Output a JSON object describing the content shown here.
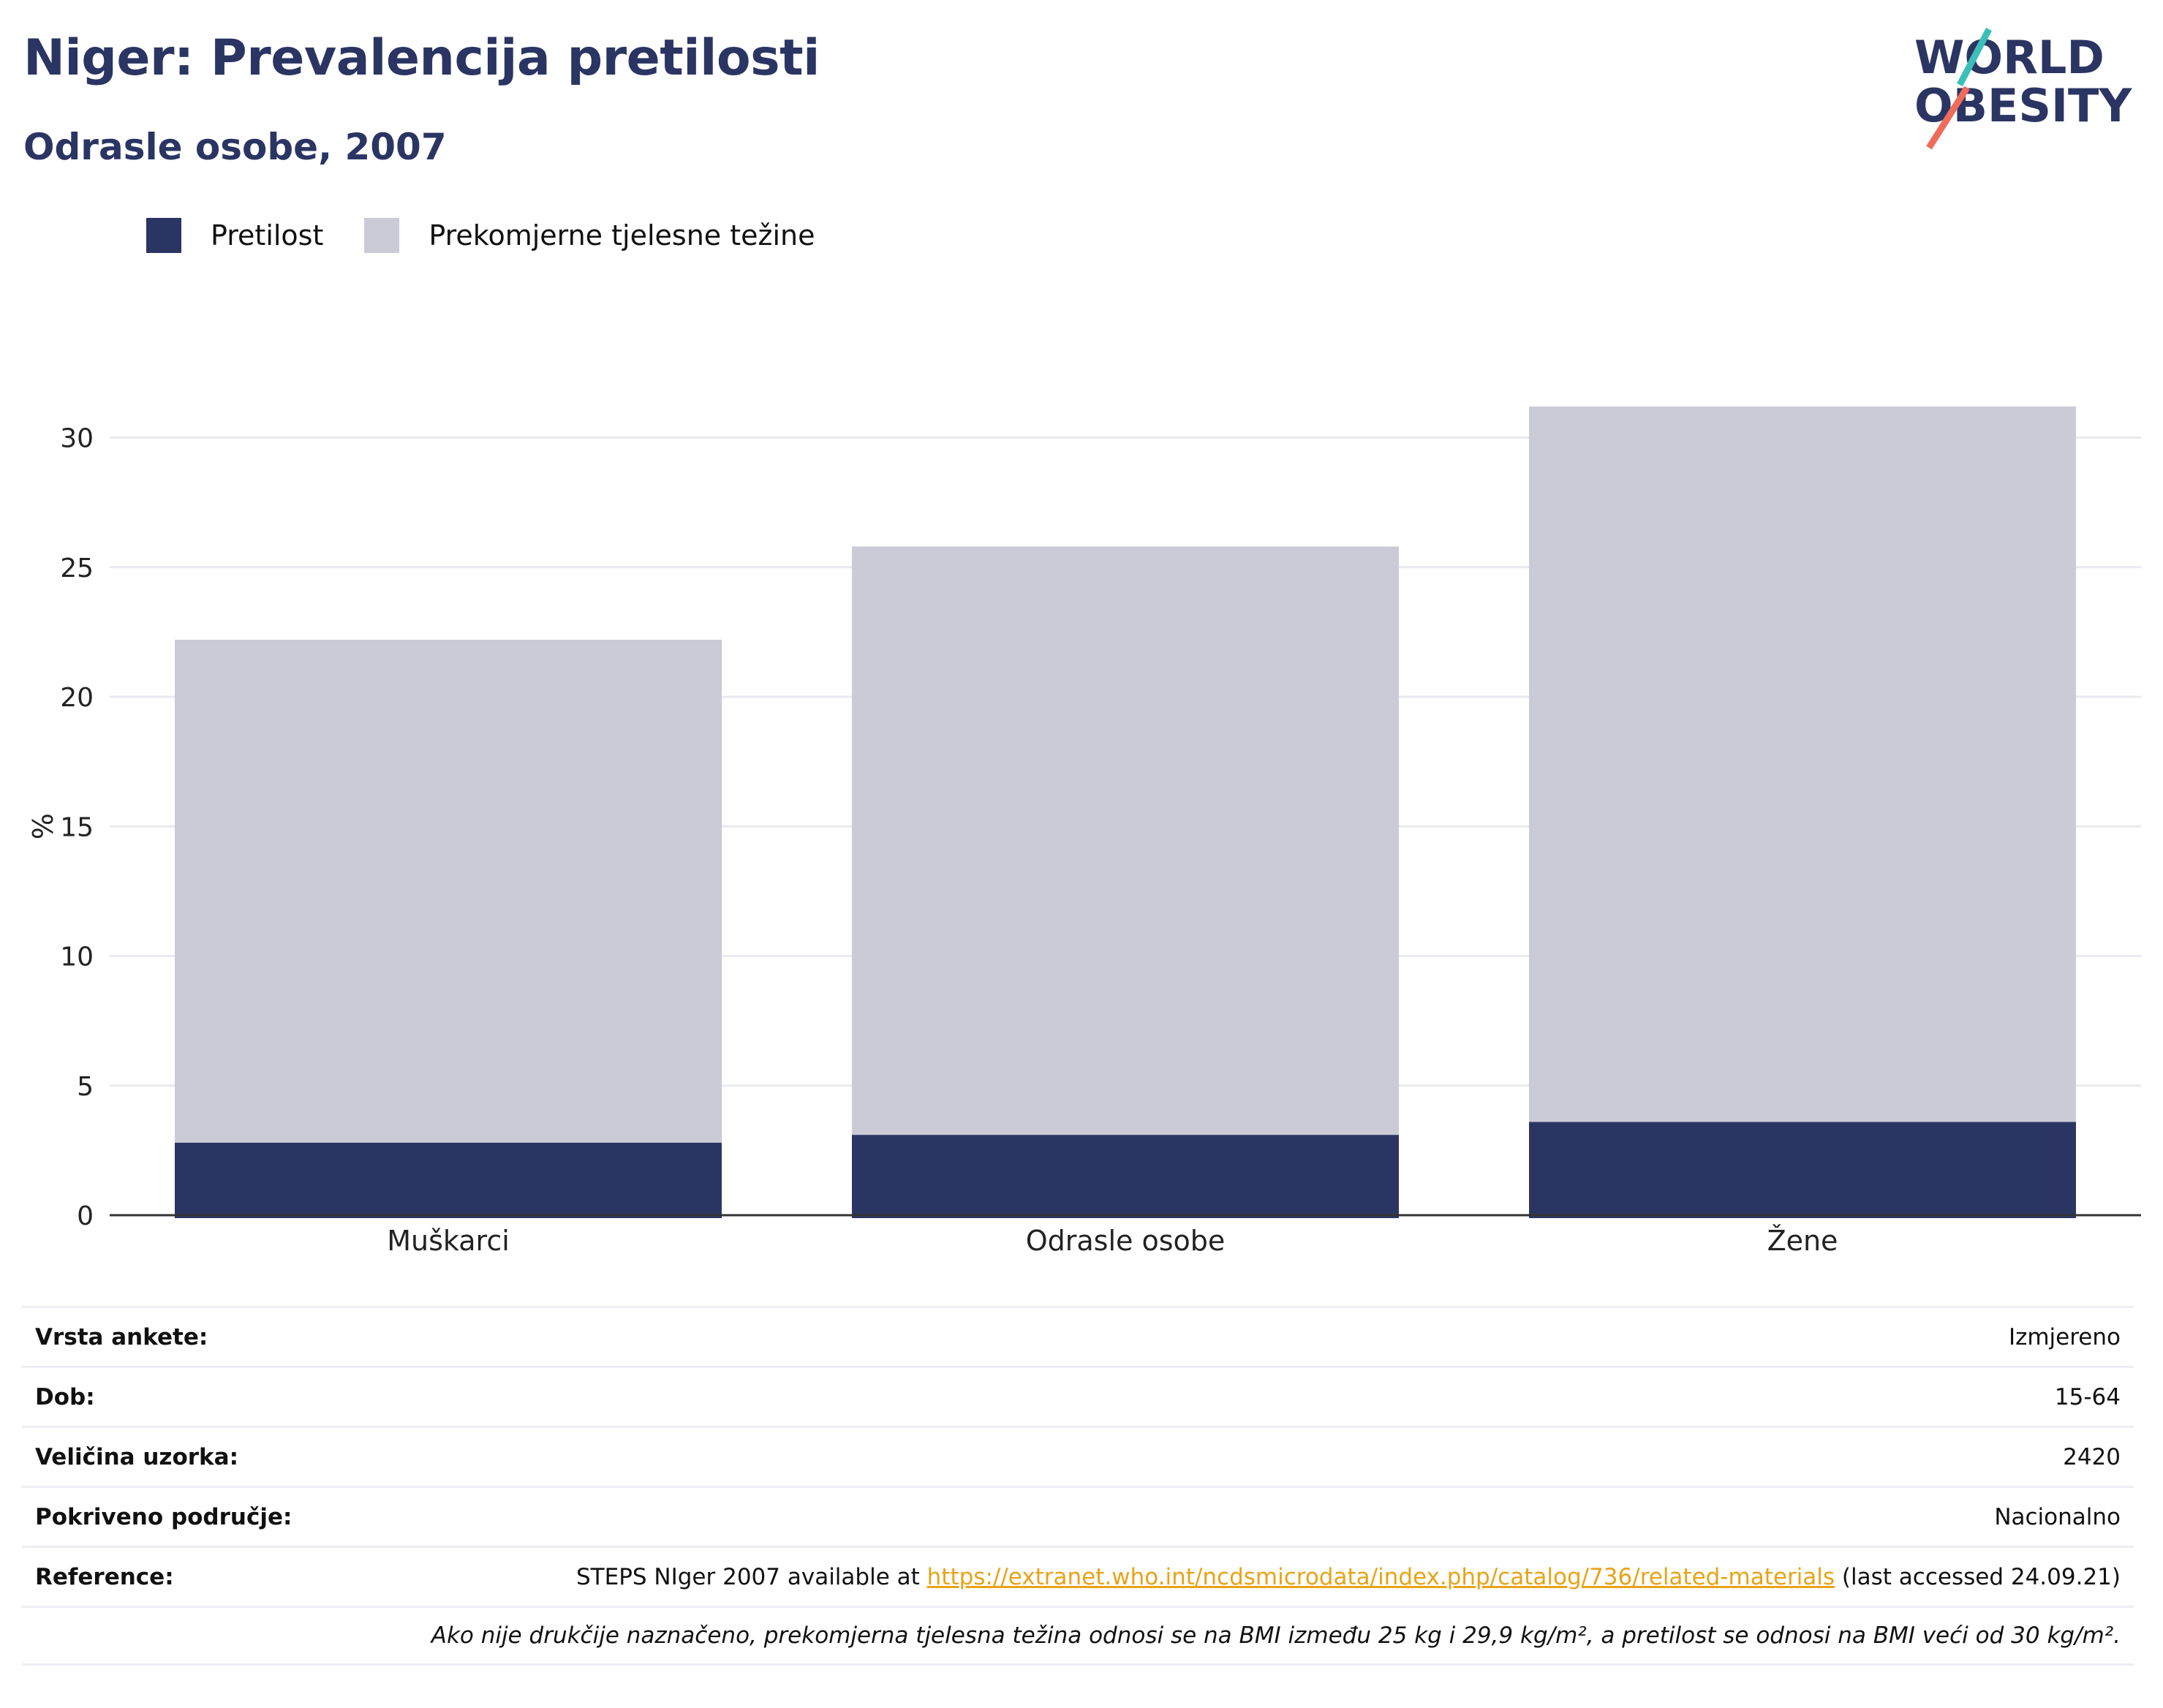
{
  "header": {
    "title": "Niger: Prevalencija pretilosti",
    "subtitle": "Odrasle osobe, 2007",
    "logo_line1": "WORLD",
    "logo_line2": "OBESITY"
  },
  "colors": {
    "obesity": "#2b3563",
    "overweight": "#cacbd6",
    "grid": "#e9eaf0",
    "logo_teal": "#3bbfb8",
    "logo_coral": "#ef6b5b"
  },
  "chart_data": {
    "type": "bar",
    "stacked": true,
    "categories": [
      "Muškarci",
      "Odrasle osobe",
      "Žene"
    ],
    "series": [
      {
        "name": "Pretilost",
        "values": [
          2.8,
          3.1,
          3.6
        ]
      },
      {
        "name": "Prekomjerne tjelesne težine",
        "values": [
          19.4,
          22.7,
          27.6
        ]
      }
    ],
    "ylabel": "%",
    "ylim": [
      0,
      32
    ],
    "yticks": [
      "0",
      "5",
      "10",
      "15",
      "20",
      "25",
      "30"
    ],
    "grid": true,
    "legend": "top-left"
  },
  "meta": {
    "rows": [
      {
        "label": "Vrsta ankete:",
        "value": "Izmjereno"
      },
      {
        "label": "Dob:",
        "value": "15-64"
      },
      {
        "label": "Veličina uzorka:",
        "value": "2420"
      },
      {
        "label": "Pokriveno područje:",
        "value": "Nacionalno"
      }
    ],
    "reference_label": "Reference:",
    "reference_prefix": "STEPS NIger 2007 available at ",
    "reference_link": "https://extranet.who.int/ncdsmicrodata/index.php/catalog/736/related-materials",
    "reference_suffix": " (last accessed 24.09.21)",
    "note": "Ako nije drukčije naznačeno, prekomjerna tjelesna težina odnosi se na BMI između 25 kg i 29,9 kg/m², a pretilost se odnosi na BMI veći od 30 kg/m²."
  }
}
